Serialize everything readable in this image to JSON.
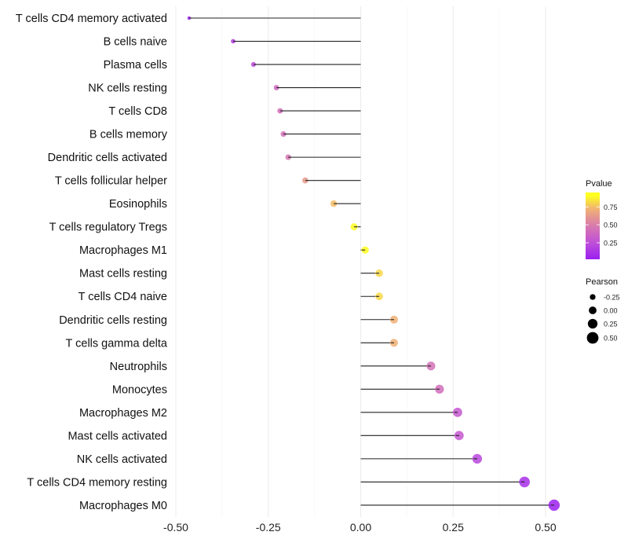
{
  "chart_data": {
    "type": "lollipop",
    "title": "",
    "xlabel": "",
    "ylabel": "",
    "xlim": [
      -0.5,
      0.53
    ],
    "x_ticks": [
      "-0.50",
      "-0.25",
      "0.00",
      "0.25",
      "0.50"
    ],
    "x_tick_values": [
      -0.5,
      -0.25,
      0,
      0.25,
      0.5
    ],
    "grid": true,
    "categories": [
      "T cells CD4 memory activated",
      "B cells naive",
      "Plasma cells",
      "NK cells resting",
      "T cells CD8",
      "B cells memory",
      "Dendritic cells activated",
      "T cells follicular helper",
      "Eosinophils",
      "T cells regulatory  Tregs",
      "Macrophages M1",
      "Mast cells resting",
      "T cells CD4 naive",
      "Dendritic cells resting",
      "T cells gamma delta",
      "Neutrophils",
      "Monocytes",
      "Macrophages M2",
      "Mast cells activated",
      "NK cells activated",
      "T cells CD4 memory resting",
      "Macrophages M0"
    ],
    "pearson": [
      -0.464,
      -0.345,
      -0.29,
      -0.228,
      -0.218,
      -0.209,
      -0.196,
      -0.15,
      -0.073,
      -0.018,
      0.012,
      0.05,
      0.05,
      0.09,
      0.09,
      0.19,
      0.213,
      0.262,
      0.266,
      0.315,
      0.443,
      0.523
    ],
    "pvalue": [
      0.02,
      0.15,
      0.22,
      0.4,
      0.42,
      0.44,
      0.48,
      0.65,
      0.78,
      0.95,
      0.95,
      0.85,
      0.85,
      0.75,
      0.75,
      0.45,
      0.42,
      0.3,
      0.3,
      0.2,
      0.08,
      0.01
    ],
    "legend": {
      "placement": "right",
      "color_title": "Pvalue",
      "color_ticks": [
        "0.75",
        "0.50",
        "0.25"
      ],
      "color_tick_values": [
        0.75,
        0.5,
        0.25
      ],
      "size_title": "Pearson",
      "size_labels": [
        "-0.25",
        "0.00",
        "0.25",
        "0.50"
      ],
      "size_values": [
        -0.25,
        0,
        0.25,
        0.5
      ]
    },
    "colors": {
      "low": "#9b1ff0",
      "q1": "#c050d8",
      "mid": "#d87aae",
      "q3": "#f0b075",
      "high": "#ffff20"
    }
  }
}
